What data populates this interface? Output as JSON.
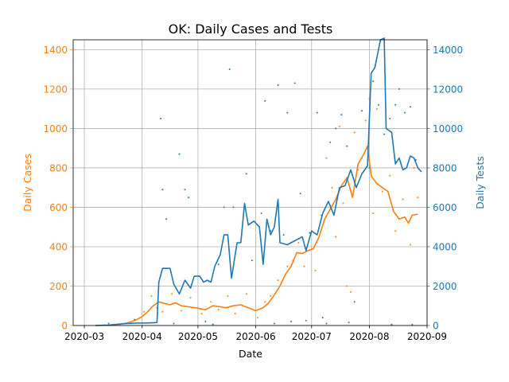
{
  "chart_data": {
    "type": "line",
    "title": "OK: Daily Cases and Tests",
    "xlabel": "Date",
    "ylabel_left": "Daily Cases",
    "ylabel_right": "Daily Tests",
    "xlim": [
      "2020-02-24",
      "2020-09-01"
    ],
    "ylim_left": [
      0,
      1450
    ],
    "ylim_right": [
      0,
      14500
    ],
    "x_ticks": [
      "2020-03",
      "2020-04",
      "2020-05",
      "2020-06",
      "2020-07",
      "2020-08",
      "2020-09"
    ],
    "y_ticks_left": [
      0,
      200,
      400,
      600,
      800,
      1000,
      1200,
      1400
    ],
    "y_ticks_right": [
      0,
      2000,
      4000,
      6000,
      8000,
      10000,
      12000,
      14000
    ],
    "grid": true,
    "colors": {
      "cases": "#ff7f0e",
      "tests": "#1f77b4"
    },
    "series": [
      {
        "axis": "left",
        "style": "line",
        "color": "#ff7f0e",
        "points": [
          [
            "2020-03-07",
            0
          ],
          [
            "2020-03-14",
            2
          ],
          [
            "2020-03-21",
            8
          ],
          [
            "2020-03-25",
            15
          ],
          [
            "2020-03-28",
            25
          ],
          [
            "2020-04-01",
            45
          ],
          [
            "2020-04-04",
            70
          ],
          [
            "2020-04-07",
            100
          ],
          [
            "2020-04-10",
            120
          ],
          [
            "2020-04-13",
            112
          ],
          [
            "2020-04-16",
            105
          ],
          [
            "2020-04-19",
            115
          ],
          [
            "2020-04-22",
            100
          ],
          [
            "2020-04-26",
            95
          ],
          [
            "2020-05-01",
            88
          ],
          [
            "2020-05-05",
            80
          ],
          [
            "2020-05-09",
            100
          ],
          [
            "2020-05-13",
            95
          ],
          [
            "2020-05-16",
            90
          ],
          [
            "2020-05-20",
            100
          ],
          [
            "2020-05-24",
            105
          ],
          [
            "2020-05-28",
            90
          ],
          [
            "2020-06-01",
            75
          ],
          [
            "2020-06-05",
            90
          ],
          [
            "2020-06-08",
            115
          ],
          [
            "2020-06-11",
            155
          ],
          [
            "2020-06-14",
            200
          ],
          [
            "2020-06-17",
            260
          ],
          [
            "2020-06-20",
            300
          ],
          [
            "2020-06-23",
            370
          ],
          [
            "2020-06-26",
            365
          ],
          [
            "2020-06-29",
            380
          ],
          [
            "2020-07-02",
            390
          ],
          [
            "2020-07-05",
            450
          ],
          [
            "2020-07-08",
            540
          ],
          [
            "2020-07-11",
            590
          ],
          [
            "2020-07-14",
            640
          ],
          [
            "2020-07-17",
            710
          ],
          [
            "2020-07-20",
            750
          ],
          [
            "2020-07-23",
            650
          ],
          [
            "2020-07-26",
            820
          ],
          [
            "2020-07-29",
            870
          ],
          [
            "2020-07-31",
            910
          ],
          [
            "2020-08-02",
            760
          ],
          [
            "2020-08-05",
            720
          ],
          [
            "2020-08-08",
            700
          ],
          [
            "2020-08-11",
            680
          ],
          [
            "2020-08-14",
            580
          ],
          [
            "2020-08-17",
            540
          ],
          [
            "2020-08-20",
            550
          ],
          [
            "2020-08-22",
            520
          ],
          [
            "2020-08-24",
            560
          ],
          [
            "2020-08-27",
            565
          ]
        ]
      },
      {
        "axis": "right",
        "style": "line",
        "color": "#1f77b4",
        "points": [
          [
            "2020-03-07",
            0
          ],
          [
            "2020-03-14",
            20
          ],
          [
            "2020-03-21",
            80
          ],
          [
            "2020-03-28",
            120
          ],
          [
            "2020-04-04",
            130
          ],
          [
            "2020-04-09",
            150
          ],
          [
            "2020-04-10",
            2200
          ],
          [
            "2020-04-12",
            2900
          ],
          [
            "2020-04-16",
            2900
          ],
          [
            "2020-04-18",
            2100
          ],
          [
            "2020-04-21",
            1600
          ],
          [
            "2020-04-24",
            2300
          ],
          [
            "2020-04-27",
            1900
          ],
          [
            "2020-04-29",
            2500
          ],
          [
            "2020-05-02",
            2500
          ],
          [
            "2020-05-04",
            2200
          ],
          [
            "2020-05-06",
            2300
          ],
          [
            "2020-05-08",
            2200
          ],
          [
            "2020-05-10",
            3000
          ],
          [
            "2020-05-13",
            3600
          ],
          [
            "2020-05-15",
            4600
          ],
          [
            "2020-05-17",
            4600
          ],
          [
            "2020-05-19",
            2400
          ],
          [
            "2020-05-22",
            4200
          ],
          [
            "2020-05-24",
            4200
          ],
          [
            "2020-05-26",
            6200
          ],
          [
            "2020-05-28",
            5100
          ],
          [
            "2020-05-31",
            5300
          ],
          [
            "2020-06-03",
            5000
          ],
          [
            "2020-06-05",
            3100
          ],
          [
            "2020-06-07",
            5400
          ],
          [
            "2020-06-09",
            4600
          ],
          [
            "2020-06-11",
            5000
          ],
          [
            "2020-06-13",
            6400
          ],
          [
            "2020-06-14",
            4200
          ],
          [
            "2020-06-18",
            4100
          ],
          [
            "2020-06-22",
            4300
          ],
          [
            "2020-06-26",
            4500
          ],
          [
            "2020-06-28",
            3800
          ],
          [
            "2020-07-01",
            4800
          ],
          [
            "2020-07-04",
            4600
          ],
          [
            "2020-07-07",
            5700
          ],
          [
            "2020-07-10",
            6300
          ],
          [
            "2020-07-13",
            5600
          ],
          [
            "2020-07-16",
            7000
          ],
          [
            "2020-07-19",
            7100
          ],
          [
            "2020-07-22",
            7900
          ],
          [
            "2020-07-25",
            7000
          ],
          [
            "2020-07-28",
            7700
          ],
          [
            "2020-07-31",
            8100
          ],
          [
            "2020-08-02",
            12800
          ],
          [
            "2020-08-04",
            13100
          ],
          [
            "2020-08-07",
            14500
          ],
          [
            "2020-08-09",
            14600
          ],
          [
            "2020-08-10",
            10000
          ],
          [
            "2020-08-13",
            9800
          ],
          [
            "2020-08-15",
            8200
          ],
          [
            "2020-08-17",
            8500
          ],
          [
            "2020-08-19",
            7900
          ],
          [
            "2020-08-21",
            8000
          ],
          [
            "2020-08-23",
            8600
          ],
          [
            "2020-08-25",
            8500
          ],
          [
            "2020-08-27",
            8000
          ],
          [
            "2020-08-29",
            7800
          ]
        ]
      },
      {
        "axis": "left",
        "style": "scatter",
        "color": "#ff7f0e",
        "points": [
          [
            "2020-03-20",
            5
          ],
          [
            "2020-03-26",
            10
          ],
          [
            "2020-04-02",
            70
          ],
          [
            "2020-04-06",
            150
          ],
          [
            "2020-04-09",
            90
          ],
          [
            "2020-04-12",
            70
          ],
          [
            "2020-04-17",
            160
          ],
          [
            "2020-04-22",
            75
          ],
          [
            "2020-04-27",
            140
          ],
          [
            "2020-05-03",
            60
          ],
          [
            "2020-05-08",
            120
          ],
          [
            "2020-05-12",
            80
          ],
          [
            "2020-05-17",
            150
          ],
          [
            "2020-05-21",
            60
          ],
          [
            "2020-05-27",
            160
          ],
          [
            "2020-06-02",
            40
          ],
          [
            "2020-06-06",
            120
          ],
          [
            "2020-06-09",
            150
          ],
          [
            "2020-06-13",
            230
          ],
          [
            "2020-06-18",
            300
          ],
          [
            "2020-06-21",
            330
          ],
          [
            "2020-06-24",
            420
          ],
          [
            "2020-06-27",
            300
          ],
          [
            "2020-07-01",
            480
          ],
          [
            "2020-07-03",
            280
          ],
          [
            "2020-07-06",
            560
          ],
          [
            "2020-07-09",
            850
          ],
          [
            "2020-07-12",
            700
          ],
          [
            "2020-07-14",
            450
          ],
          [
            "2020-07-16",
            1010
          ],
          [
            "2020-07-18",
            620
          ],
          [
            "2020-07-20",
            200
          ],
          [
            "2020-07-22",
            170
          ],
          [
            "2020-07-24",
            980
          ],
          [
            "2020-07-26",
            790
          ],
          [
            "2020-07-28",
            850
          ],
          [
            "2020-07-30",
            1040
          ],
          [
            "2020-08-01",
            1150
          ],
          [
            "2020-08-03",
            570
          ],
          [
            "2020-08-05",
            1100
          ],
          [
            "2020-08-08",
            680
          ],
          [
            "2020-08-12",
            760
          ],
          [
            "2020-08-15",
            480
          ],
          [
            "2020-08-19",
            640
          ],
          [
            "2020-08-23",
            410
          ],
          [
            "2020-08-25",
            800
          ],
          [
            "2020-08-27",
            650
          ]
        ]
      },
      {
        "axis": "right",
        "style": "scatter",
        "color": "#1f77b4",
        "points": [
          [
            "2020-04-11",
            10500
          ],
          [
            "2020-04-12",
            6900
          ],
          [
            "2020-04-14",
            5400
          ],
          [
            "2020-04-21",
            8700
          ],
          [
            "2020-04-24",
            6900
          ],
          [
            "2020-04-26",
            6500
          ],
          [
            "2020-05-05",
            200
          ],
          [
            "2020-05-12",
            3100
          ],
          [
            "2020-05-15",
            6000
          ],
          [
            "2020-05-18",
            13000
          ],
          [
            "2020-05-20",
            6000
          ],
          [
            "2020-05-27",
            7700
          ],
          [
            "2020-05-30",
            3300
          ],
          [
            "2020-06-04",
            5700
          ],
          [
            "2020-06-06",
            11400
          ],
          [
            "2020-06-09",
            4800
          ],
          [
            "2020-06-13",
            12200
          ],
          [
            "2020-06-16",
            4600
          ],
          [
            "2020-06-18",
            10800
          ],
          [
            "2020-06-22",
            12300
          ],
          [
            "2020-06-25",
            6700
          ],
          [
            "2020-06-30",
            4700
          ],
          [
            "2020-07-04",
            10800
          ],
          [
            "2020-07-07",
            400
          ],
          [
            "2020-07-11",
            9300
          ],
          [
            "2020-07-14",
            10000
          ],
          [
            "2020-07-17",
            10700
          ],
          [
            "2020-07-20",
            9100
          ],
          [
            "2020-07-24",
            1200
          ],
          [
            "2020-07-28",
            10900
          ],
          [
            "2020-08-01",
            8000
          ],
          [
            "2020-08-03",
            12400
          ],
          [
            "2020-08-06",
            11200
          ],
          [
            "2020-08-09",
            9700
          ],
          [
            "2020-08-12",
            10500
          ],
          [
            "2020-08-15",
            11200
          ],
          [
            "2020-08-17",
            12000
          ],
          [
            "2020-08-20",
            10800
          ],
          [
            "2020-08-23",
            11100
          ],
          [
            "2020-08-26",
            8400
          ],
          [
            "2020-03-14",
            100
          ],
          [
            "2020-03-28",
            300
          ],
          [
            "2020-04-18",
            100
          ],
          [
            "2020-05-09",
            60
          ],
          [
            "2020-06-11",
            100
          ],
          [
            "2020-06-20",
            200
          ],
          [
            "2020-06-28",
            250
          ],
          [
            "2020-07-09",
            100
          ],
          [
            "2020-07-21",
            150
          ],
          [
            "2020-08-13",
            50
          ],
          [
            "2020-08-24",
            40
          ]
        ]
      }
    ]
  }
}
